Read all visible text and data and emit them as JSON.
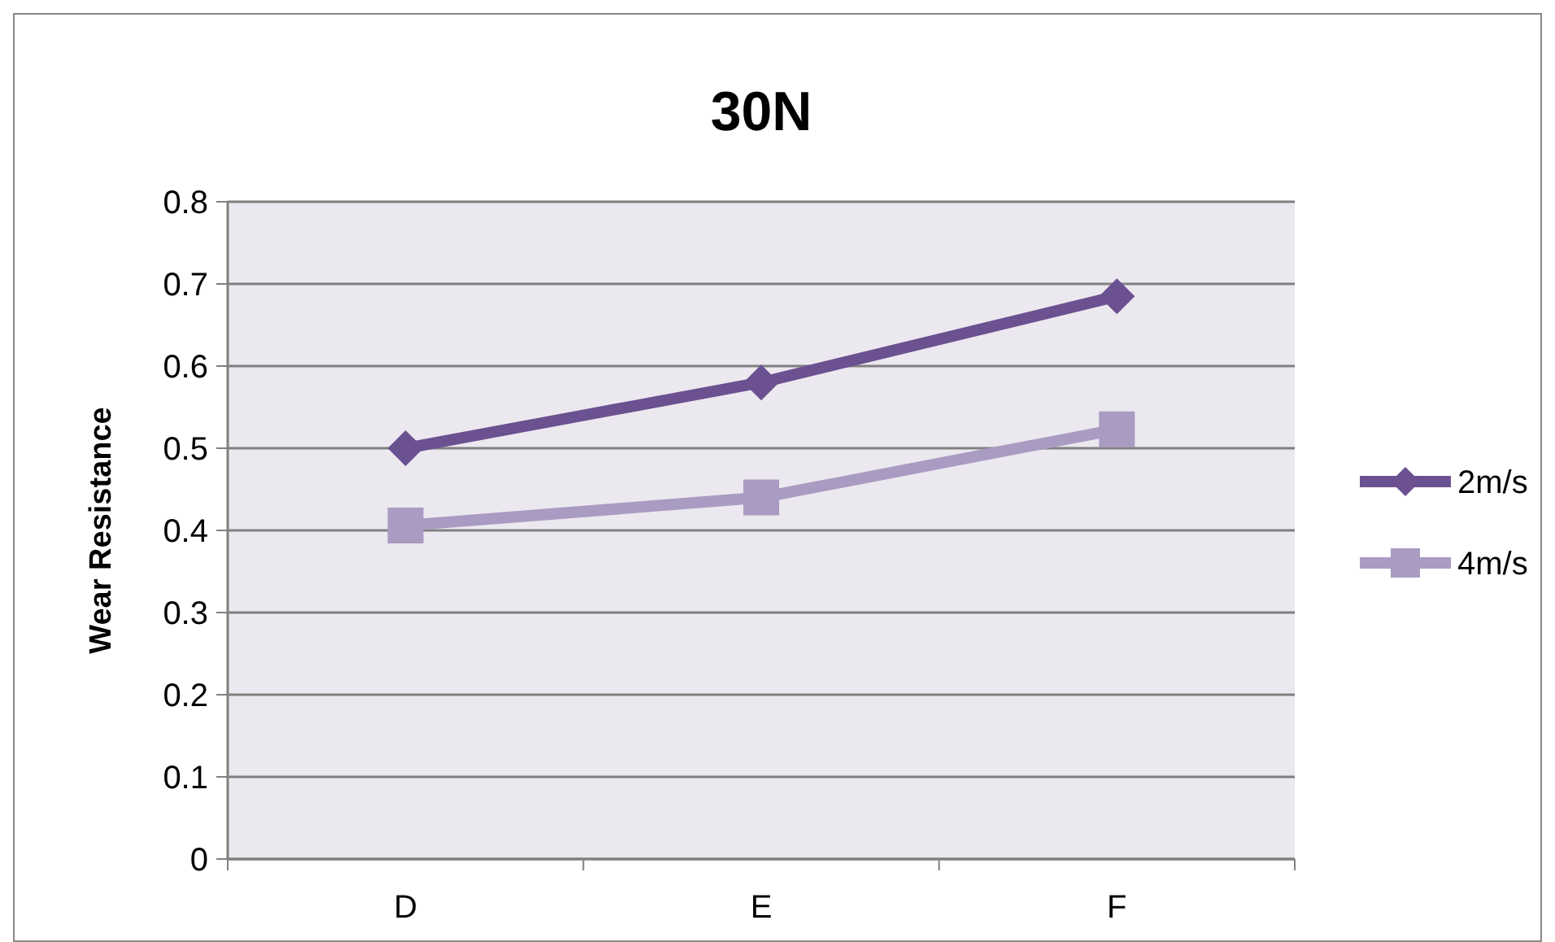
{
  "chart_data": {
    "type": "line",
    "title": "30N",
    "ylabel": "Wear Resistance",
    "categories": [
      "D",
      "E",
      "F"
    ],
    "series": [
      {
        "name": "2m/s",
        "color": "#6b5190",
        "marker": "diamond",
        "values": [
          0.5,
          0.58,
          0.685
        ]
      },
      {
        "name": "4m/s",
        "color": "#a99bc1",
        "marker": "square",
        "values": [
          0.406,
          0.44,
          0.523
        ]
      }
    ],
    "ylim": [
      0,
      0.8
    ],
    "yticks": [
      0,
      0.1,
      0.2,
      0.3,
      0.4,
      0.5,
      0.6,
      0.7,
      0.8
    ],
    "grid": "y",
    "legend": "right"
  }
}
